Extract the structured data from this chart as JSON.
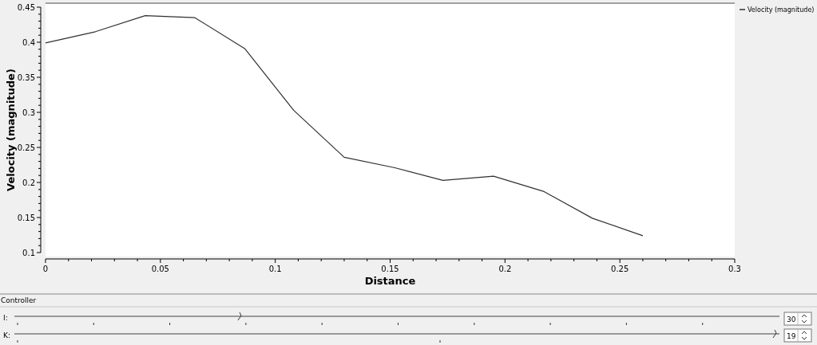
{
  "chart_data": {
    "type": "line",
    "xlabel": "Distance",
    "ylabel": "Velocity (magnitude)",
    "x": [
      0,
      0.0217,
      0.0434,
      0.065,
      0.0867,
      0.108,
      0.13,
      0.152,
      0.173,
      0.195,
      0.217,
      0.238,
      0.26
    ],
    "series": [
      {
        "name": "Velocity (magnitude)",
        "color": "#303030",
        "values": [
          0.399,
          0.415,
          0.438,
          0.435,
          0.391,
          0.303,
          0.236,
          0.221,
          0.203,
          0.209,
          0.187,
          0.149,
          0.124
        ]
      }
    ],
    "xlim": [
      0,
      0.3
    ],
    "xticks": [
      0,
      0.05,
      0.1,
      0.15,
      0.2,
      0.25,
      0.3
    ],
    "ylim": [
      0.1,
      0.45
    ],
    "yticks": [
      0.1,
      0.15,
      0.2,
      0.25,
      0.3,
      0.35,
      0.4,
      0.45
    ],
    "grid": false,
    "legend": "top right",
    "marker": "none",
    "line_style": "solid",
    "annotations": [
      "Controller",
      "I:",
      "30",
      "K:",
      "19"
    ]
  }
}
